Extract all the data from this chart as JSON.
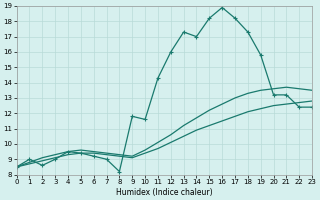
{
  "bg_color": "#d6f0ee",
  "grid_color": "#b8dbd8",
  "line_color": "#1a7a6e",
  "xlabel": "Humidex (Indice chaleur)",
  "xlim": [
    0,
    23
  ],
  "ylim": [
    8,
    19
  ],
  "xticks": [
    0,
    1,
    2,
    3,
    4,
    5,
    6,
    7,
    8,
    9,
    10,
    11,
    12,
    13,
    14,
    15,
    16,
    17,
    18,
    19,
    20,
    21,
    22,
    23
  ],
  "yticks": [
    8,
    9,
    10,
    11,
    12,
    13,
    14,
    15,
    16,
    17,
    18,
    19
  ],
  "lineA_x": [
    0,
    1,
    2,
    3,
    4,
    5,
    6,
    7,
    8,
    9,
    10,
    11,
    12,
    13,
    14,
    15,
    16,
    17,
    18,
    19,
    20,
    21,
    22,
    23
  ],
  "lineA_y": [
    8.5,
    9.0,
    8.6,
    9.0,
    9.5,
    9.4,
    9.2,
    9.0,
    8.2,
    11.8,
    11.6,
    14.3,
    16.0,
    17.3,
    17.0,
    18.2,
    18.9,
    18.2,
    17.3,
    15.8,
    13.2,
    13.2,
    12.4,
    12.4
  ],
  "lineB_x": [
    0,
    1,
    2,
    3,
    4,
    5,
    6,
    7,
    8,
    9,
    10,
    11,
    12,
    13,
    14,
    15,
    16,
    17,
    18,
    19,
    20,
    21,
    22,
    23
  ],
  "lineB_y": [
    8.5,
    8.8,
    9.1,
    9.3,
    9.5,
    9.6,
    9.5,
    9.4,
    9.3,
    9.2,
    9.6,
    10.1,
    10.6,
    11.2,
    11.7,
    12.2,
    12.6,
    13.0,
    13.3,
    13.5,
    13.6,
    13.7,
    13.6,
    13.5
  ],
  "lineC_x": [
    0,
    1,
    2,
    3,
    4,
    5,
    6,
    7,
    8,
    9,
    10,
    11,
    12,
    13,
    14,
    15,
    16,
    17,
    18,
    19,
    20,
    21,
    22,
    23
  ],
  "lineC_y": [
    8.5,
    8.7,
    8.9,
    9.1,
    9.3,
    9.4,
    9.4,
    9.3,
    9.2,
    9.1,
    9.4,
    9.7,
    10.1,
    10.5,
    10.9,
    11.2,
    11.5,
    11.8,
    12.1,
    12.3,
    12.5,
    12.6,
    12.7,
    12.8
  ]
}
